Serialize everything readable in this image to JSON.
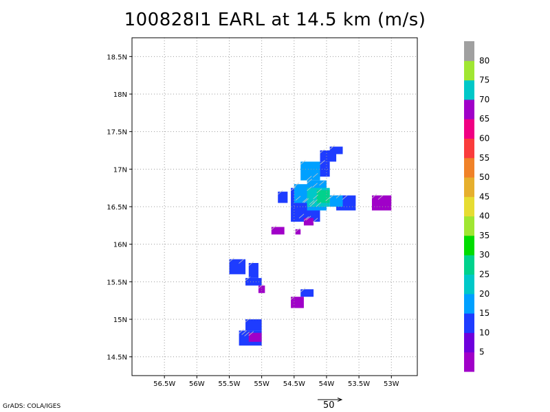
{
  "title": "100828I1 EARL at 14.5 km (m/s)",
  "credit": "GrADS: COLA/IGES",
  "vector_scale_label": "50",
  "chart_data": {
    "type": "heatmap",
    "title": "100828I1 EARL at 14.5 km (m/s)",
    "x_axis": {
      "range": [
        -57.0,
        -52.6
      ],
      "ticks": [
        -56.5,
        -56,
        -55.5,
        -55,
        -54.5,
        -54,
        -53.5,
        -53
      ],
      "tick_labels": [
        "56.5W",
        "56W",
        "55.5W",
        "55W",
        "54.5W",
        "54W",
        "53.5W",
        "53W"
      ]
    },
    "y_axis": {
      "range": [
        14.25,
        18.75
      ],
      "ticks": [
        14.5,
        15,
        15.5,
        16,
        16.5,
        17,
        17.5,
        18,
        18.5
      ],
      "tick_labels": [
        "14.5N",
        "15N",
        "15.5N",
        "16N",
        "16.5N",
        "17N",
        "17.5N",
        "18N",
        "18.5N"
      ]
    },
    "grid": true,
    "colorbar": {
      "labels": [
        "5",
        "10",
        "15",
        "20",
        "25",
        "30",
        "35",
        "40",
        "45",
        "50",
        "55",
        "60",
        "65",
        "70",
        "75",
        "80"
      ],
      "colors": [
        "#a000c8",
        "#6e00dc",
        "#1e3cff",
        "#00a0ff",
        "#00c8c8",
        "#00d28c",
        "#00dc00",
        "#a0e632",
        "#e6dc32",
        "#e6af2d",
        "#f08228",
        "#fa3c3c",
        "#f00082",
        "#a000c8",
        "#00c8c8",
        "#a0e632",
        "#a0a0a0"
      ]
    },
    "cells": [
      {
        "lon0": -53.3,
        "lon1": -53.0,
        "lat0": 16.45,
        "lat1": 16.65,
        "v": "#a000c8"
      },
      {
        "lon0": -53.85,
        "lon1": -53.55,
        "lat0": 16.45,
        "lat1": 16.65,
        "v": "#1e3cff"
      },
      {
        "lon0": -53.95,
        "lon1": -53.75,
        "lat0": 16.5,
        "lat1": 16.65,
        "v": "#00a0ff"
      },
      {
        "lon0": -54.55,
        "lon1": -54.1,
        "lat0": 16.3,
        "lat1": 16.75,
        "v": "#1e3cff"
      },
      {
        "lon0": -54.5,
        "lon1": -54.25,
        "lat0": 16.55,
        "lat1": 16.8,
        "v": "#00a0ff"
      },
      {
        "lon0": -54.3,
        "lon1": -54.0,
        "lat0": 16.45,
        "lat1": 16.85,
        "v": "#00a0ff"
      },
      {
        "lon0": -54.3,
        "lon1": -53.95,
        "lat0": 16.5,
        "lat1": 16.75,
        "v": "#00c8c8"
      },
      {
        "lon0": -54.15,
        "lon1": -53.95,
        "lat0": 16.55,
        "lat1": 16.72,
        "v": "#00d28c"
      },
      {
        "lon0": -54.4,
        "lon1": -54.1,
        "lat0": 16.85,
        "lat1": 17.1,
        "v": "#00a0ff"
      },
      {
        "lon0": -54.1,
        "lon1": -53.95,
        "lat0": 16.9,
        "lat1": 17.1,
        "v": "#1e3cff"
      },
      {
        "lon0": -54.1,
        "lon1": -53.85,
        "lat0": 17.1,
        "lat1": 17.25,
        "v": "#1e3cff"
      },
      {
        "lon0": -53.95,
        "lon1": -53.75,
        "lat0": 17.2,
        "lat1": 17.3,
        "v": "#1e3cff"
      },
      {
        "lon0": -54.75,
        "lon1": -54.6,
        "lat0": 16.55,
        "lat1": 16.7,
        "v": "#1e3cff"
      },
      {
        "lon0": -54.35,
        "lon1": -54.2,
        "lat0": 16.25,
        "lat1": 16.35,
        "v": "#a000c8"
      },
      {
        "lon0": -54.85,
        "lon1": -54.65,
        "lat0": 16.13,
        "lat1": 16.23,
        "v": "#a000c8"
      },
      {
        "lon0": -54.48,
        "lon1": -54.4,
        "lat0": 16.13,
        "lat1": 16.2,
        "v": "#a000c8"
      },
      {
        "lon0": -55.5,
        "lon1": -55.25,
        "lat0": 15.6,
        "lat1": 15.8,
        "v": "#1e3cff"
      },
      {
        "lon0": -55.2,
        "lon1": -55.05,
        "lat0": 15.55,
        "lat1": 15.75,
        "v": "#1e3cff"
      },
      {
        "lon0": -55.25,
        "lon1": -55.0,
        "lat0": 15.45,
        "lat1": 15.55,
        "v": "#1e3cff"
      },
      {
        "lon0": -55.05,
        "lon1": -54.95,
        "lat0": 15.35,
        "lat1": 15.45,
        "v": "#a000c8"
      },
      {
        "lon0": -54.4,
        "lon1": -54.2,
        "lat0": 15.3,
        "lat1": 15.4,
        "v": "#1e3cff"
      },
      {
        "lon0": -54.55,
        "lon1": -54.35,
        "lat0": 15.15,
        "lat1": 15.3,
        "v": "#a000c8"
      },
      {
        "lon0": -55.25,
        "lon1": -55.0,
        "lat0": 14.85,
        "lat1": 15.0,
        "v": "#1e3cff"
      },
      {
        "lon0": -55.35,
        "lon1": -55.0,
        "lat0": 14.65,
        "lat1": 14.85,
        "v": "#1e3cff"
      },
      {
        "lon0": -55.2,
        "lon1": -55.0,
        "lat0": 14.7,
        "lat1": 14.82,
        "v": "#a000c8"
      }
    ]
  }
}
